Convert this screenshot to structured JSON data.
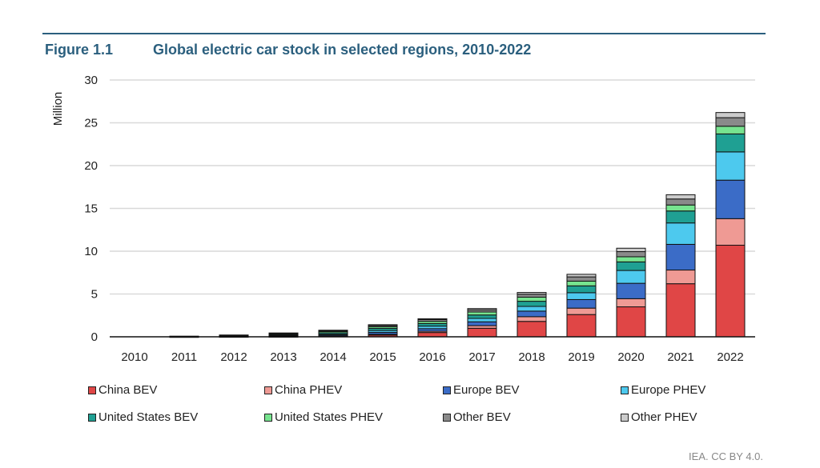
{
  "figure": {
    "label": "Figure 1.1",
    "title": "Global electric car stock in selected regions, 2010-2022",
    "source": "IEA. CC BY 4.0."
  },
  "chart_data": {
    "type": "bar",
    "stacked": true,
    "title": "Global electric car stock in selected regions, 2010-2022",
    "ylabel": "Million",
    "xlabel": "",
    "ylim": [
      0,
      30
    ],
    "yticks": [
      0,
      5,
      10,
      15,
      20,
      25,
      30
    ],
    "grid": true,
    "legend_position": "bottom",
    "categories": [
      "2010",
      "2011",
      "2012",
      "2013",
      "2014",
      "2015",
      "2016",
      "2017",
      "2018",
      "2019",
      "2020",
      "2021",
      "2022"
    ],
    "series": [
      {
        "name": "China BEV",
        "color": "#e04646",
        "values": [
          0.0,
          0.01,
          0.02,
          0.03,
          0.07,
          0.2,
          0.5,
          1.0,
          1.8,
          2.6,
          3.5,
          6.2,
          10.7
        ]
      },
      {
        "name": "China PHEV",
        "color": "#ef9a94",
        "values": [
          0.0,
          0.0,
          0.0,
          0.01,
          0.03,
          0.1,
          0.15,
          0.3,
          0.55,
          0.75,
          0.95,
          1.6,
          3.1
        ]
      },
      {
        "name": "Europe BEV",
        "color": "#3b6cc7",
        "values": [
          0.0,
          0.01,
          0.04,
          0.07,
          0.12,
          0.22,
          0.3,
          0.45,
          0.65,
          1.0,
          1.8,
          3.0,
          4.5
        ]
      },
      {
        "name": "Europe PHEV",
        "color": "#4dc9ee",
        "values": [
          0.0,
          0.0,
          0.01,
          0.04,
          0.08,
          0.22,
          0.3,
          0.4,
          0.55,
          0.8,
          1.5,
          2.5,
          3.3
        ]
      },
      {
        "name": "United States BEV",
        "color": "#1fa093",
        "values": [
          0.0,
          0.01,
          0.03,
          0.1,
          0.17,
          0.25,
          0.3,
          0.4,
          0.6,
          0.8,
          1.0,
          1.4,
          2.1
        ]
      },
      {
        "name": "United States PHEV",
        "color": "#77e48f",
        "values": [
          0.0,
          0.01,
          0.05,
          0.1,
          0.15,
          0.19,
          0.26,
          0.35,
          0.48,
          0.55,
          0.6,
          0.7,
          0.9
        ]
      },
      {
        "name": "Other BEV",
        "color": "#8a8a8a",
        "values": [
          0.0,
          0.02,
          0.04,
          0.07,
          0.1,
          0.15,
          0.2,
          0.25,
          0.35,
          0.5,
          0.6,
          0.7,
          1.0
        ]
      },
      {
        "name": "Other PHEV",
        "color": "#cccccc",
        "values": [
          0.0,
          0.01,
          0.02,
          0.03,
          0.05,
          0.08,
          0.1,
          0.15,
          0.2,
          0.3,
          0.4,
          0.5,
          0.6
        ]
      }
    ]
  }
}
